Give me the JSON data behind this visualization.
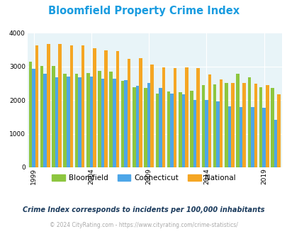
{
  "title": "Bloomfield Property Crime Index",
  "title_color": "#1a9ce0",
  "years": [
    1999,
    2000,
    2001,
    2002,
    2003,
    2004,
    2005,
    2006,
    2007,
    2008,
    2009,
    2010,
    2011,
    2012,
    2013,
    2014,
    2015,
    2016,
    2017,
    2018,
    2019,
    2020
  ],
  "bloomfield": [
    3150,
    3020,
    3010,
    2790,
    2790,
    2800,
    2870,
    2840,
    2570,
    2390,
    2360,
    2200,
    2250,
    2230,
    2270,
    2440,
    2470,
    2510,
    2790,
    2670,
    2380,
    2360
  ],
  "connecticut": [
    2920,
    2780,
    2680,
    2700,
    2680,
    2700,
    2640,
    2640,
    2600,
    2420,
    2500,
    2370,
    2190,
    2180,
    2010,
    2000,
    1950,
    1810,
    1800,
    1790,
    1770,
    1420
  ],
  "national": [
    3620,
    3660,
    3660,
    3620,
    3620,
    3550,
    3470,
    3450,
    3230,
    3240,
    3050,
    2970,
    2960,
    2980,
    2940,
    2770,
    2620,
    2510,
    2510,
    2490,
    2450,
    2180
  ],
  "bloomfield_color": "#8dc63f",
  "connecticut_color": "#4da6e8",
  "national_color": "#f5a623",
  "bg_color": "#e8f4f8",
  "ylim": [
    0,
    4000
  ],
  "yticks": [
    0,
    1000,
    2000,
    3000,
    4000
  ],
  "xtick_years": [
    1999,
    2004,
    2009,
    2014,
    2019
  ],
  "subtitle": "Crime Index corresponds to incidents per 100,000 inhabitants",
  "subtitle_color": "#1a3a5c",
  "footer": "© 2024 CityRating.com - https://www.cityrating.com/crime-statistics/",
  "footer_color": "#aaaaaa",
  "legend_labels": [
    "Bloomfield",
    "Connecticut",
    "National"
  ]
}
